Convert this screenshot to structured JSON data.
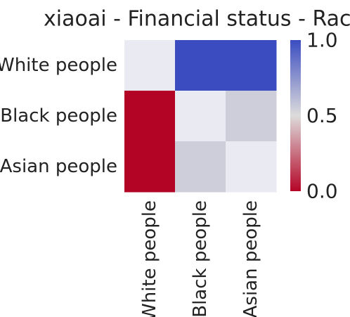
{
  "chart_data": {
    "type": "heatmap",
    "title": "xiaoai - Financial status - Race",
    "xlabel": "",
    "ylabel": "",
    "rows": [
      "White people",
      "Black people",
      "Asian people"
    ],
    "columns": [
      "White people",
      "Black people",
      "Asian people"
    ],
    "values": [
      [
        0.5,
        1.0,
        1.0
      ],
      [
        0.0,
        0.5,
        0.55
      ],
      [
        0.0,
        0.55,
        0.5
      ]
    ],
    "colormap": "coolwarm_r",
    "colorbar": {
      "range": [
        0.0,
        1.0
      ],
      "ticks": [
        0.0,
        0.5,
        1.0
      ],
      "tick_labels": [
        "0.0",
        "0.5",
        "1.0"
      ],
      "color_low": "#b40426",
      "color_mid": "#dddcdc",
      "color_high": "#3b4cc0"
    },
    "background_color": "#eaeaf2",
    "grid": false
  }
}
